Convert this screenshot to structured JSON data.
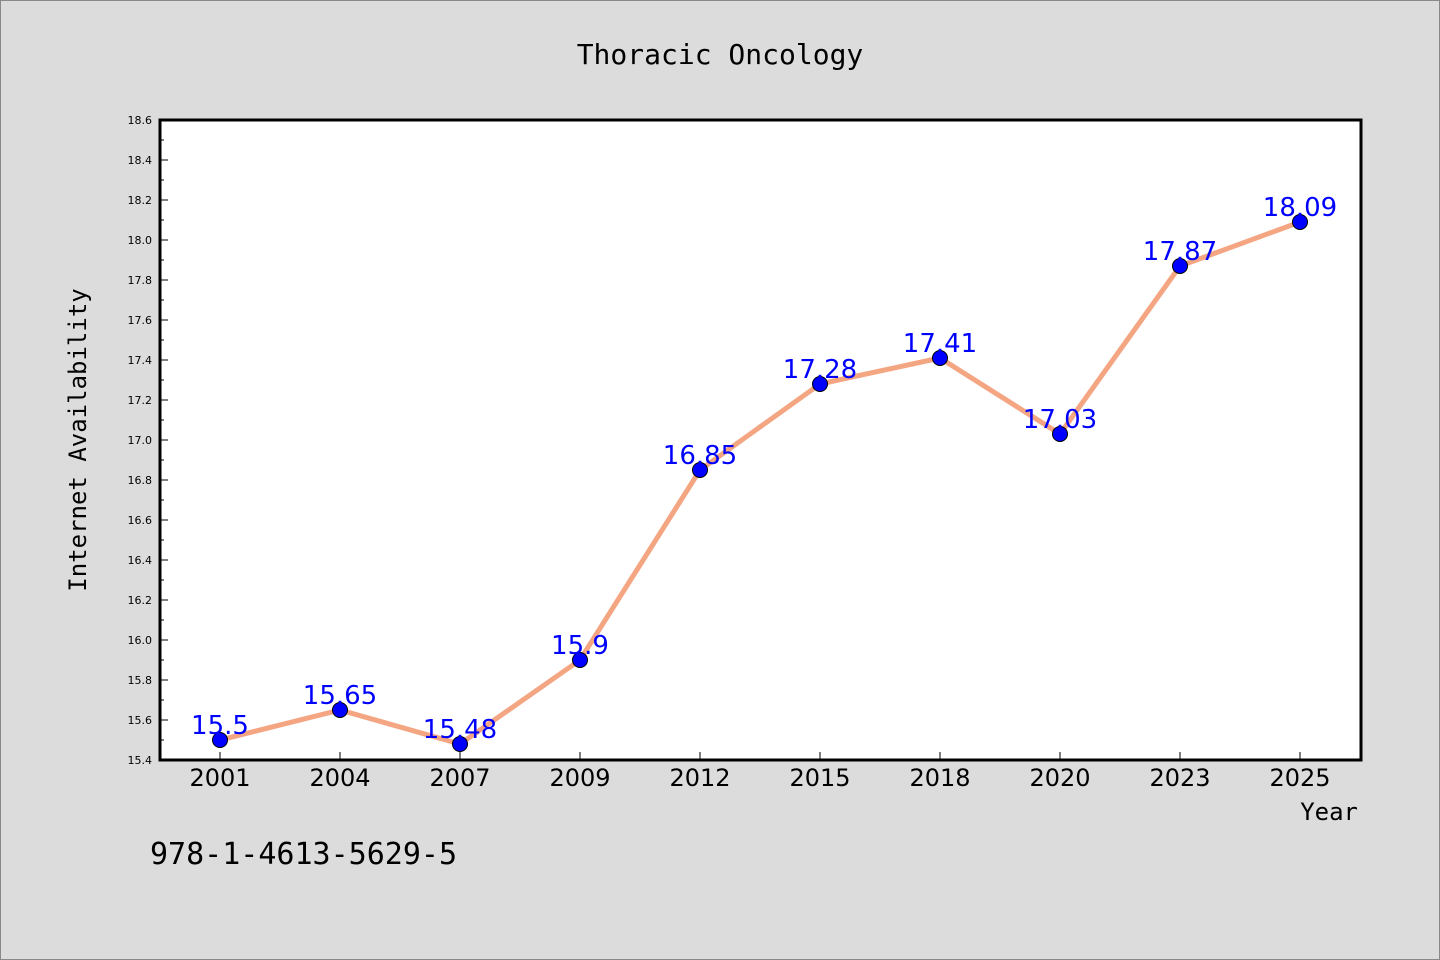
{
  "chart_data": {
    "type": "line",
    "title": "Thoracic Oncology",
    "xlabel": "Year",
    "ylabel": "Internet Availability",
    "categories": [
      "2001",
      "2004",
      "2007",
      "2009",
      "2012",
      "2015",
      "2018",
      "2020",
      "2023",
      "2025"
    ],
    "series": [
      {
        "values": [
          15.5,
          15.65,
          15.48,
          15.9,
          16.85,
          17.28,
          17.41,
          17.03,
          17.87,
          18.09
        ],
        "data_labels": [
          "15.5",
          "15.65",
          "15.48",
          "15.9",
          "16.85",
          "17.28",
          "17.41",
          "17.03",
          "17.87",
          "18.09"
        ],
        "line_color": "#f4a582",
        "marker_color": "#0000ff",
        "label_color": "#0000ff"
      }
    ],
    "ylim": [
      15.4,
      18.6
    ],
    "yticks": [
      "15.4",
      "15.6",
      "15.8",
      "16.0",
      "16.2",
      "16.4",
      "16.6",
      "16.8",
      "17.0",
      "17.2",
      "17.4",
      "17.6",
      "17.8",
      "18.0",
      "18.2",
      "18.4",
      "18.6"
    ],
    "grid": false,
    "legend": "none"
  },
  "footer": {
    "isbn": "978-1-4613-5629-5"
  },
  "colors": {
    "background": "#dcdcdc",
    "plot_area": "#ffffff",
    "axis": "#000000"
  }
}
